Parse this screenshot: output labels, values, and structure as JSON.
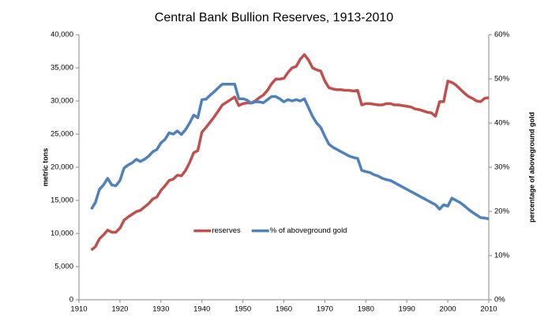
{
  "chart_data": {
    "type": "line",
    "title": "Central Bank Bullion Reserves, 1913-2010",
    "ylabel": "metric tons",
    "y2label": "percentage of aboveground gold",
    "x": [
      1913,
      1914,
      1915,
      1916,
      1917,
      1918,
      1919,
      1920,
      1921,
      1922,
      1923,
      1924,
      1925,
      1926,
      1927,
      1928,
      1929,
      1930,
      1931,
      1932,
      1933,
      1934,
      1935,
      1936,
      1937,
      1938,
      1939,
      1940,
      1941,
      1942,
      1943,
      1944,
      1945,
      1946,
      1947,
      1948,
      1949,
      1950,
      1951,
      1952,
      1953,
      1954,
      1955,
      1956,
      1957,
      1958,
      1959,
      1960,
      1961,
      1962,
      1963,
      1964,
      1965,
      1966,
      1967,
      1968,
      1969,
      1970,
      1971,
      1972,
      1973,
      1974,
      1975,
      1976,
      1977,
      1978,
      1979,
      1980,
      1981,
      1982,
      1983,
      1984,
      1985,
      1986,
      1987,
      1988,
      1989,
      1990,
      1991,
      1992,
      1993,
      1994,
      1995,
      1996,
      1997,
      1998,
      1999,
      2000,
      2001,
      2002,
      2003,
      2004,
      2005,
      2006,
      2007,
      2008,
      2009,
      2010
    ],
    "series": [
      {
        "name": "reserves",
        "color": "#c0504d",
        "axis": "y",
        "values": [
          7500,
          8000,
          9200,
          9800,
          10500,
          10200,
          10200,
          10800,
          12000,
          12500,
          12900,
          13300,
          13500,
          14000,
          14500,
          15200,
          15500,
          16500,
          17200,
          18000,
          18200,
          18800,
          18700,
          19500,
          20700,
          22200,
          22500,
          25300,
          26000,
          26800,
          27600,
          28500,
          29400,
          29800,
          30200,
          30600,
          29300,
          29600,
          29700,
          29700,
          30000,
          30500,
          30900,
          31600,
          32600,
          33300,
          33300,
          33400,
          34300,
          35000,
          35200,
          36300,
          37000,
          36200,
          35000,
          34700,
          34500,
          33000,
          32000,
          31800,
          31700,
          31700,
          31600,
          31600,
          31500,
          31600,
          29400,
          29600,
          29600,
          29500,
          29400,
          29400,
          29600,
          29600,
          29400,
          29400,
          29300,
          29200,
          29100,
          28800,
          28700,
          28500,
          28300,
          28200,
          27700,
          29900,
          29900,
          33000,
          32800,
          32400,
          31800,
          31200,
          30700,
          30400,
          30000,
          29900,
          30400,
          30500
        ]
      },
      {
        "name": "% of aboveground gold",
        "color": "#4f81bd",
        "axis": "y2",
        "values": [
          20.5,
          22,
          25,
          26,
          27.5,
          26,
          25.8,
          27,
          29.8,
          30.5,
          31,
          31.8,
          31.3,
          31.8,
          32.5,
          33.5,
          34,
          35.5,
          36.3,
          37.8,
          37.5,
          38.2,
          37.4,
          38.5,
          40,
          41.8,
          41.2,
          45.3,
          45.4,
          46.3,
          47.1,
          48,
          48.8,
          48.8,
          48.8,
          48.8,
          45.5,
          45.5,
          45.2,
          44.5,
          44.8,
          44.8,
          44.6,
          45.3,
          46,
          46,
          45.5,
          44.8,
          45.3,
          45,
          45.3,
          45,
          45.5,
          43.5,
          41.5,
          40,
          39,
          37,
          35.2,
          34.5,
          34,
          33.5,
          33,
          32.5,
          32.2,
          32,
          29.3,
          29,
          28.8,
          28.3,
          28,
          27.5,
          27.2,
          27,
          26.5,
          26,
          25.5,
          25,
          24.5,
          24,
          23.5,
          23,
          22.5,
          22,
          21.5,
          20.5,
          21.5,
          21.2,
          23,
          22.5,
          22,
          21.3,
          20.5,
          19.8,
          19.2,
          18.6,
          18.5,
          18.3
        ]
      }
    ],
    "xlim": [
      1910,
      2010
    ],
    "xticks": [
      1910,
      1920,
      1930,
      1940,
      1950,
      1960,
      1970,
      1980,
      1990,
      2000,
      2010
    ],
    "ylim": [
      0,
      40000
    ],
    "yticks": [
      0,
      {
        "value": 5000,
        "label": "5,000"
      },
      {
        "value": 10000,
        "label": "10,000"
      },
      {
        "value": 15000,
        "label": "15,000"
      },
      {
        "value": 20000,
        "label": "20,000"
      },
      {
        "value": 25000,
        "label": "25,000"
      },
      {
        "value": 30000,
        "label": "30,000"
      },
      {
        "value": 35000,
        "label": "35,000"
      },
      {
        "value": 40000,
        "label": "40,000"
      }
    ],
    "y2lim": [
      0,
      60
    ],
    "y2ticks": [
      {
        "value": 0,
        "label": "0%"
      },
      {
        "value": 10,
        "label": "10%"
      },
      {
        "value": 20,
        "label": "20%"
      },
      {
        "value": 30,
        "label": "30%"
      },
      {
        "value": 40,
        "label": "40%"
      },
      {
        "value": 50,
        "label": "50%"
      },
      {
        "value": 60,
        "label": "60%"
      }
    ],
    "grid": false,
    "legend": "center"
  }
}
